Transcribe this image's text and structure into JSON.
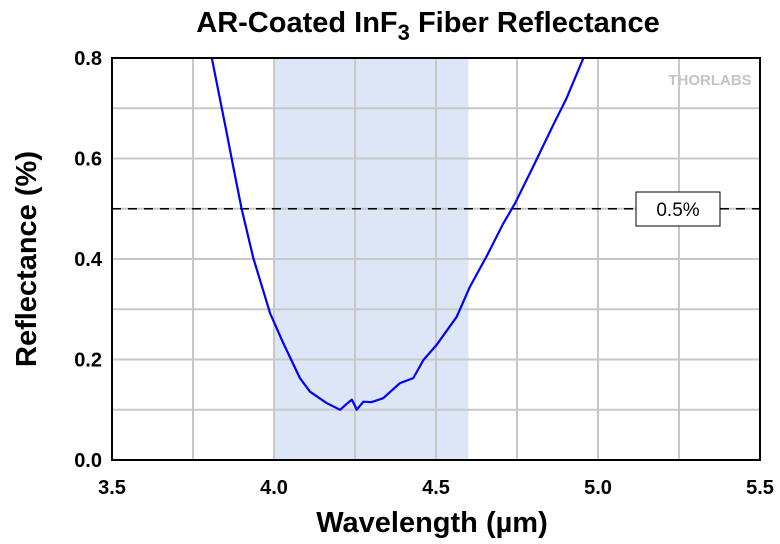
{
  "chart_data": {
    "type": "line",
    "title": "AR-Coated InF",
    "title_sub": "3",
    "title_rest": " Fiber Reflectance",
    "xlabel": "Wavelength (µm)",
    "ylabel": "Reflectance (%)",
    "xlim": [
      3.5,
      5.5
    ],
    "ylim": [
      0.0,
      0.8
    ],
    "xticks": [
      "3.5",
      "4.0",
      "4.5",
      "5.0",
      "5.5"
    ],
    "yticks": [
      "0.0",
      "0.2",
      "0.4",
      "0.6",
      "0.8"
    ],
    "grid": true,
    "shaded_band": [
      4.0,
      4.6
    ],
    "reference_line": {
      "y": 0.5,
      "label": "0.5%"
    },
    "watermark": "THORLABS",
    "series": [
      {
        "name": "Reflectance",
        "color": "#0000ff",
        "x": [
          3.808,
          3.854,
          3.874,
          3.9,
          3.936,
          3.988,
          4.029,
          4.08,
          4.111,
          4.163,
          4.204,
          4.225,
          4.24,
          4.25,
          4.255,
          4.276,
          4.3,
          4.337,
          4.389,
          4.43,
          4.461,
          4.502,
          4.564,
          4.605,
          4.656,
          4.708,
          4.744,
          4.8,
          4.862,
          4.903,
          4.955
        ],
        "y": [
          0.8,
          0.651,
          0.584,
          0.5,
          0.402,
          0.292,
          0.232,
          0.163,
          0.136,
          0.113,
          0.1,
          0.112,
          0.12,
          0.108,
          0.1,
          0.116,
          0.115,
          0.123,
          0.153,
          0.163,
          0.199,
          0.229,
          0.285,
          0.345,
          0.405,
          0.471,
          0.511,
          0.584,
          0.667,
          0.72,
          0.8
        ]
      }
    ]
  },
  "colors": {
    "band": "#dce6f7",
    "grid": "#c8c8c8",
    "line": "#0000ff"
  }
}
